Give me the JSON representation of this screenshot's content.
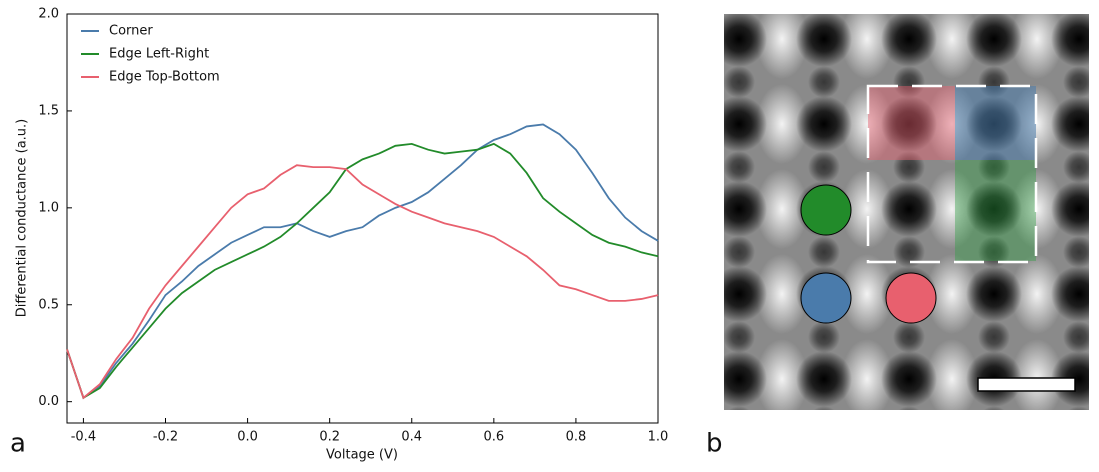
{
  "chart_data": {
    "type": "line",
    "xlabel": "Voltage (V)",
    "ylabel": "Differential conductance (a.u.)",
    "x": [
      -0.44,
      -0.4,
      -0.36,
      -0.32,
      -0.28,
      -0.24,
      -0.2,
      -0.16,
      -0.12,
      -0.08,
      -0.04,
      0,
      0.04,
      0.08,
      0.12,
      0.16,
      0.2,
      0.24,
      0.28,
      0.32,
      0.36,
      0.4,
      0.44,
      0.48,
      0.52,
      0.56,
      0.6,
      0.64,
      0.68,
      0.72,
      0.76,
      0.8,
      0.84,
      0.88,
      0.92,
      0.96,
      1.0
    ],
    "series": [
      {
        "name": "Corner",
        "color": "#4a7bab",
        "values": [
          0.27,
          0.02,
          0.08,
          0.2,
          0.3,
          0.42,
          0.55,
          0.62,
          0.7,
          0.76,
          0.82,
          0.86,
          0.9,
          0.9,
          0.92,
          0.88,
          0.85,
          0.88,
          0.9,
          0.96,
          1.0,
          1.03,
          1.08,
          1.15,
          1.22,
          1.3,
          1.35,
          1.38,
          1.42,
          1.43,
          1.38,
          1.3,
          1.18,
          1.05,
          0.95,
          0.88,
          0.83
        ]
      },
      {
        "name": "Edge Left-Right",
        "color": "#228b2a",
        "values": [
          0.27,
          0.02,
          0.07,
          0.18,
          0.28,
          0.38,
          0.48,
          0.56,
          0.62,
          0.68,
          0.72,
          0.76,
          0.8,
          0.85,
          0.92,
          1.0,
          1.08,
          1.2,
          1.25,
          1.28,
          1.32,
          1.33,
          1.3,
          1.28,
          1.29,
          1.3,
          1.33,
          1.28,
          1.18,
          1.05,
          0.98,
          0.92,
          0.86,
          0.82,
          0.8,
          0.77,
          0.75
        ]
      },
      {
        "name": "Edge Top-Bottom",
        "color": "#e8606e",
        "values": [
          0.27,
          0.02,
          0.09,
          0.22,
          0.33,
          0.48,
          0.6,
          0.7,
          0.8,
          0.9,
          1.0,
          1.07,
          1.1,
          1.17,
          1.22,
          1.21,
          1.21,
          1.2,
          1.12,
          1.07,
          1.02,
          0.98,
          0.95,
          0.92,
          0.9,
          0.88,
          0.85,
          0.8,
          0.75,
          0.68,
          0.6,
          0.58,
          0.55,
          0.52,
          0.52,
          0.53,
          0.55
        ]
      }
    ],
    "xlim": [
      -0.44,
      1.0
    ],
    "xticks": [
      -0.4,
      -0.2,
      {
        "value": 0,
        "label": "0.0"
      },
      0.2,
      0.4,
      0.6,
      0.8,
      {
        "value": 1,
        "label": "1.0"
      }
    ],
    "ylim": [
      -0.11,
      2.0
    ],
    "yticks": [
      {
        "value": 0,
        "label": "0.0"
      },
      0.5,
      {
        "value": 1,
        "label": "1.0"
      },
      1.5,
      {
        "value": 2,
        "label": "2.0"
      }
    ],
    "legend": "upper-left"
  },
  "panel_labels": [
    "a",
    "b"
  ]
}
